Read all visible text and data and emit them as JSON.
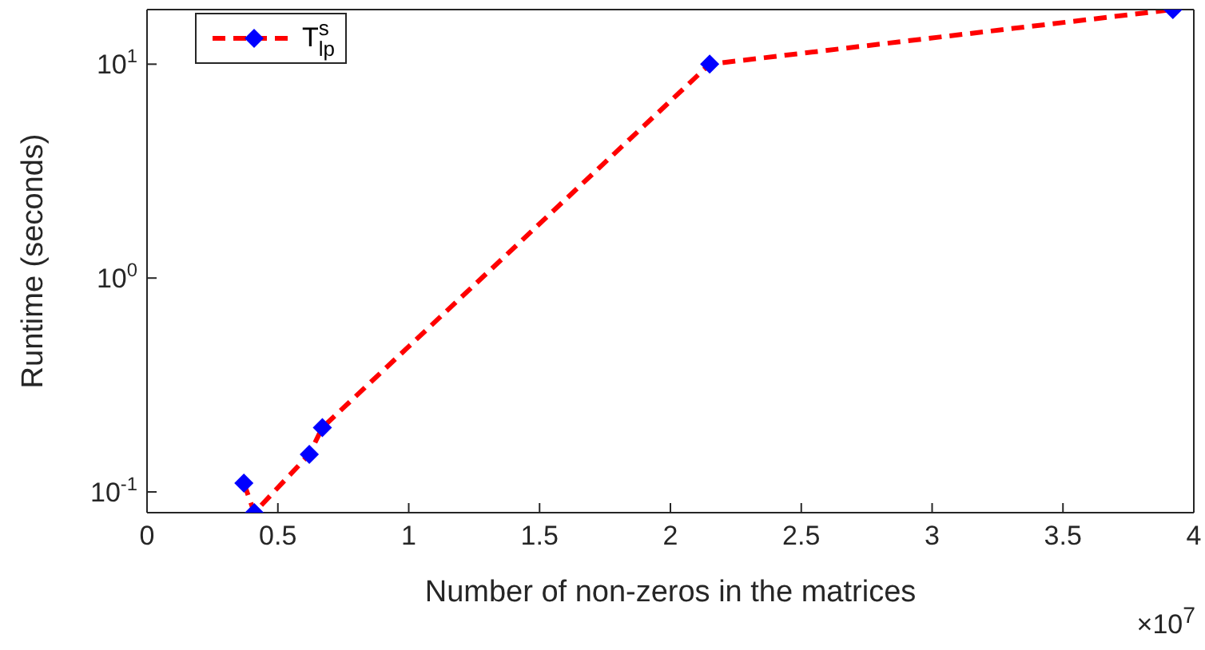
{
  "chart_data": {
    "type": "line",
    "xlabel": "Number of non-zeros in the matrices",
    "ylabel": "Runtime (seconds)",
    "x": [
      0.37,
      0.41,
      0.62,
      0.67,
      2.15,
      3.92
    ],
    "series": [
      {
        "name": "T$^{s}$$_{lp}$",
        "color": "#ff0000",
        "colors": [
          "#0000ff",
          "#0000ff",
          "#0000ff",
          "#0000ff",
          "#0000ff",
          "#0000ff"
        ],
        "values": [
          0.11,
          0.08,
          0.15,
          0.2,
          10,
          18
        ]
      }
    ],
    "xlim": [
      0,
      4
    ],
    "xticks": [
      0,
      0.5,
      1,
      1.5,
      2,
      2.5,
      3,
      3.5,
      4
    ],
    "ylim": [
      0.08,
      18
    ],
    "yticks": [
      {
        "value": 0.1,
        "label": "10$^{-1}$"
      },
      {
        "value": 1,
        "label": "10$^{0}$"
      },
      {
        "value": 10,
        "label": "10$^{1}$"
      }
    ],
    "log": "y",
    "grid": false,
    "legend": "top left",
    "marker": "diamond",
    "line_style": "dashed",
    "annotations": [
      "×10$^{7}$"
    ]
  }
}
